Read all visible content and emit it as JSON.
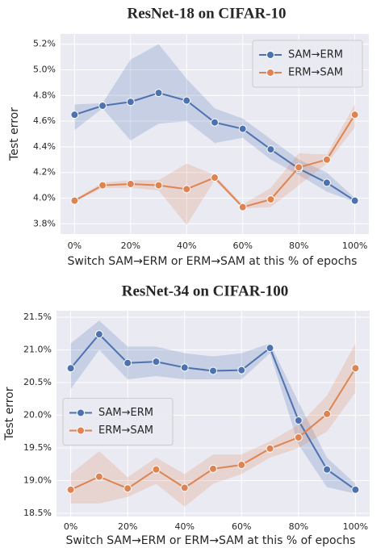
{
  "chart_data": [
    {
      "type": "line",
      "title": "ResNet-18 on CIFAR-10",
      "xlabel": "Switch SAM→ERM or ERM→SAM at this % of epochs",
      "ylabel": "Test error",
      "x": [
        0,
        10,
        20,
        30,
        40,
        50,
        60,
        70,
        80,
        90,
        100
      ],
      "xlim": [
        -5,
        105
      ],
      "xticks": [
        {
          "value": 0,
          "label": "0%"
        },
        {
          "value": 20,
          "label": "20%"
        },
        {
          "value": 40,
          "label": "40%"
        },
        {
          "value": 60,
          "label": "60%"
        },
        {
          "value": 80,
          "label": "80%"
        },
        {
          "value": 100,
          "label": "100%"
        }
      ],
      "ylim": [
        3.72,
        5.28
      ],
      "yticks": [
        {
          "value": 3.8,
          "label": "3.8%"
        },
        {
          "value": 4.0,
          "label": "4.0%"
        },
        {
          "value": 4.2,
          "label": "4.2%"
        },
        {
          "value": 4.4,
          "label": "4.4%"
        },
        {
          "value": 4.6,
          "label": "4.6%"
        },
        {
          "value": 4.8,
          "label": "4.8%"
        },
        {
          "value": 5.0,
          "label": "5.0%"
        },
        {
          "value": 5.2,
          "label": "5.2%"
        }
      ],
      "grid": true,
      "legend": "upper right",
      "series": [
        {
          "name": "SAM→ERM",
          "color": "#4c72b0",
          "values": [
            4.65,
            4.72,
            4.75,
            4.82,
            4.76,
            4.59,
            4.54,
            4.38,
            4.23,
            4.12,
            3.98
          ],
          "lower": [
            4.53,
            4.7,
            4.45,
            4.58,
            4.6,
            4.43,
            4.47,
            4.3,
            4.18,
            4.05,
            3.97
          ],
          "upper": [
            4.73,
            4.74,
            5.08,
            5.2,
            4.93,
            4.7,
            4.62,
            4.46,
            4.3,
            4.2,
            4.0
          ]
        },
        {
          "name": "ERM→SAM",
          "color": "#dd8452",
          "values": [
            3.98,
            4.1,
            4.11,
            4.1,
            4.07,
            4.16,
            3.93,
            3.99,
            4.24,
            4.3,
            4.65
          ],
          "lower": [
            3.97,
            4.08,
            4.08,
            4.06,
            3.79,
            4.14,
            3.92,
            3.93,
            4.1,
            4.27,
            4.55
          ],
          "upper": [
            3.99,
            4.12,
            4.14,
            4.14,
            4.27,
            4.18,
            3.95,
            4.08,
            4.35,
            4.34,
            4.73
          ]
        }
      ]
    },
    {
      "type": "line",
      "title": "ResNet-34 on CIFAR-100",
      "xlabel": "Switch SAM→ERM or ERM→SAM at this % of epochs",
      "ylabel": "Test error",
      "x": [
        0,
        10,
        20,
        30,
        40,
        50,
        60,
        70,
        80,
        90,
        100
      ],
      "xlim": [
        -5,
        105
      ],
      "xticks": [
        {
          "value": 0,
          "label": "0%"
        },
        {
          "value": 20,
          "label": "20%"
        },
        {
          "value": 40,
          "label": "40%"
        },
        {
          "value": 60,
          "label": "60%"
        },
        {
          "value": 80,
          "label": "80%"
        },
        {
          "value": 100,
          "label": "100%"
        }
      ],
      "ylim": [
        18.45,
        21.6
      ],
      "yticks": [
        {
          "value": 18.5,
          "label": "18.5%"
        },
        {
          "value": 19.0,
          "label": "19.0%"
        },
        {
          "value": 19.5,
          "label": "19.5%"
        },
        {
          "value": 20.0,
          "label": "20.0%"
        },
        {
          "value": 20.5,
          "label": "20.5%"
        },
        {
          "value": 21.0,
          "label": "21.0%"
        },
        {
          "value": 21.5,
          "label": "21.5%"
        }
      ],
      "grid": true,
      "legend": "center left",
      "series": [
        {
          "name": "SAM→ERM",
          "color": "#4c72b0",
          "values": [
            20.72,
            21.24,
            20.8,
            20.82,
            20.73,
            20.68,
            20.69,
            21.03,
            19.92,
            19.17,
            18.86
          ],
          "lower": [
            20.4,
            21.0,
            20.55,
            20.6,
            20.55,
            20.55,
            20.55,
            20.95,
            19.55,
            18.9,
            18.8
          ],
          "upper": [
            21.1,
            21.45,
            21.05,
            21.05,
            20.95,
            20.9,
            20.95,
            21.1,
            20.2,
            19.35,
            18.95
          ]
        },
        {
          "name": "ERM→SAM",
          "color": "#dd8452",
          "values": [
            18.86,
            19.06,
            18.88,
            19.17,
            18.89,
            19.18,
            19.24,
            19.49,
            19.66,
            20.02,
            20.72
          ],
          "lower": [
            18.65,
            18.65,
            18.75,
            18.95,
            18.6,
            18.95,
            19.1,
            19.35,
            19.5,
            19.75,
            20.35
          ],
          "upper": [
            19.1,
            19.45,
            19.05,
            19.35,
            19.1,
            19.4,
            19.4,
            19.6,
            19.85,
            20.3,
            21.1
          ]
        }
      ]
    }
  ]
}
